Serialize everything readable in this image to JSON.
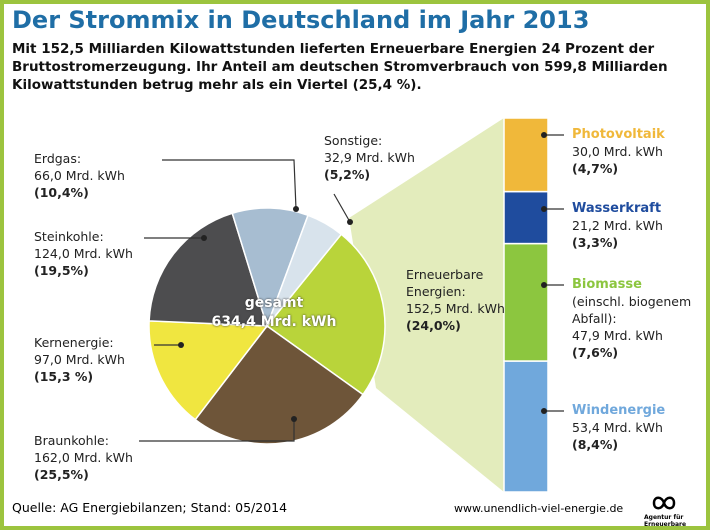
{
  "title": "Der Strommix in Deutschland im Jahr 2013",
  "subtitle": "Mit 152,5 Milliarden Kilowattstunden lieferten Erneuerbare Energien 24 Prozent der Bruttostromerzeugung. Ihr Anteil am deutschen Stromverbrauch von 599,8 Milliarden Kilowattstunden betrug mehr als ein Viertel (25,4 %).",
  "source": "Quelle:  AG Energiebilanzen; Stand: 05/2014",
  "url": "www.unendlich-viel-energie.de",
  "logo_text": "Agentur für Erneuerbare Energien",
  "chart_data": [
    {
      "type": "pie",
      "total_label": "gesamt",
      "total_value": 634.4,
      "total_value_label": "634,4 Mrd. kWh",
      "categories": [
        "Erneuerbare Energien:",
        "Braunkohle:",
        "Kernenergie:",
        "Steinkohle:",
        "Erdgas:",
        "Sonstige:"
      ],
      "values": [
        152.5,
        162.0,
        97.0,
        124.0,
        66.0,
        32.9
      ],
      "value_labels": [
        "152,5 Mrd. kWh",
        "162,0 Mrd. kWh",
        "97,0 Mrd. kWh",
        "124,0 Mrd. kWh",
        "66,0 Mrd. kWh",
        "32,9 Mrd. kWh"
      ],
      "percents": [
        24.0,
        25.5,
        15.3,
        19.5,
        10.4,
        5.2
      ],
      "percent_labels": [
        "(24,0%)",
        "(25,5%)",
        "(15,3 %)",
        "(19,5%)",
        "(10,4%)",
        "(5,2%)"
      ],
      "colors": [
        "#b9d43a",
        "#6e5539",
        "#f0e640",
        "#4d4d4f",
        "#a7bdd1",
        "#d8e3ec"
      ]
    },
    {
      "type": "bar",
      "stacked": true,
      "series": [
        {
          "name": "Windenergie",
          "color": "#70a8dc",
          "values": [
            53.4
          ],
          "value_labels": [
            "53,4 Mrd. kWh"
          ],
          "percents": [
            8.4
          ],
          "percent_labels": [
            "(8,4%)"
          ]
        },
        {
          "name": "Biomasse",
          "color": "#8cc63f",
          "note": "(einschl. biogenem Abfall):",
          "values": [
            47.9
          ],
          "value_labels": [
            "47,9 Mrd. kWh"
          ],
          "percents": [
            7.6
          ],
          "percent_labels": [
            "(7,6%)"
          ]
        },
        {
          "name": "Wasserkraft",
          "color": "#1f4c9e",
          "values": [
            21.2
          ],
          "value_labels": [
            "21,2 Mrd. kWh"
          ],
          "percents": [
            3.3
          ],
          "percent_labels": [
            "(3,3%)"
          ]
        },
        {
          "name": "Photovoltaik",
          "color": "#f0b83a",
          "values": [
            30.0
          ],
          "value_labels": [
            "30,0 Mrd. kWh"
          ],
          "percents": [
            4.7
          ],
          "percent_labels": [
            "(4,7%)"
          ]
        }
      ]
    }
  ]
}
